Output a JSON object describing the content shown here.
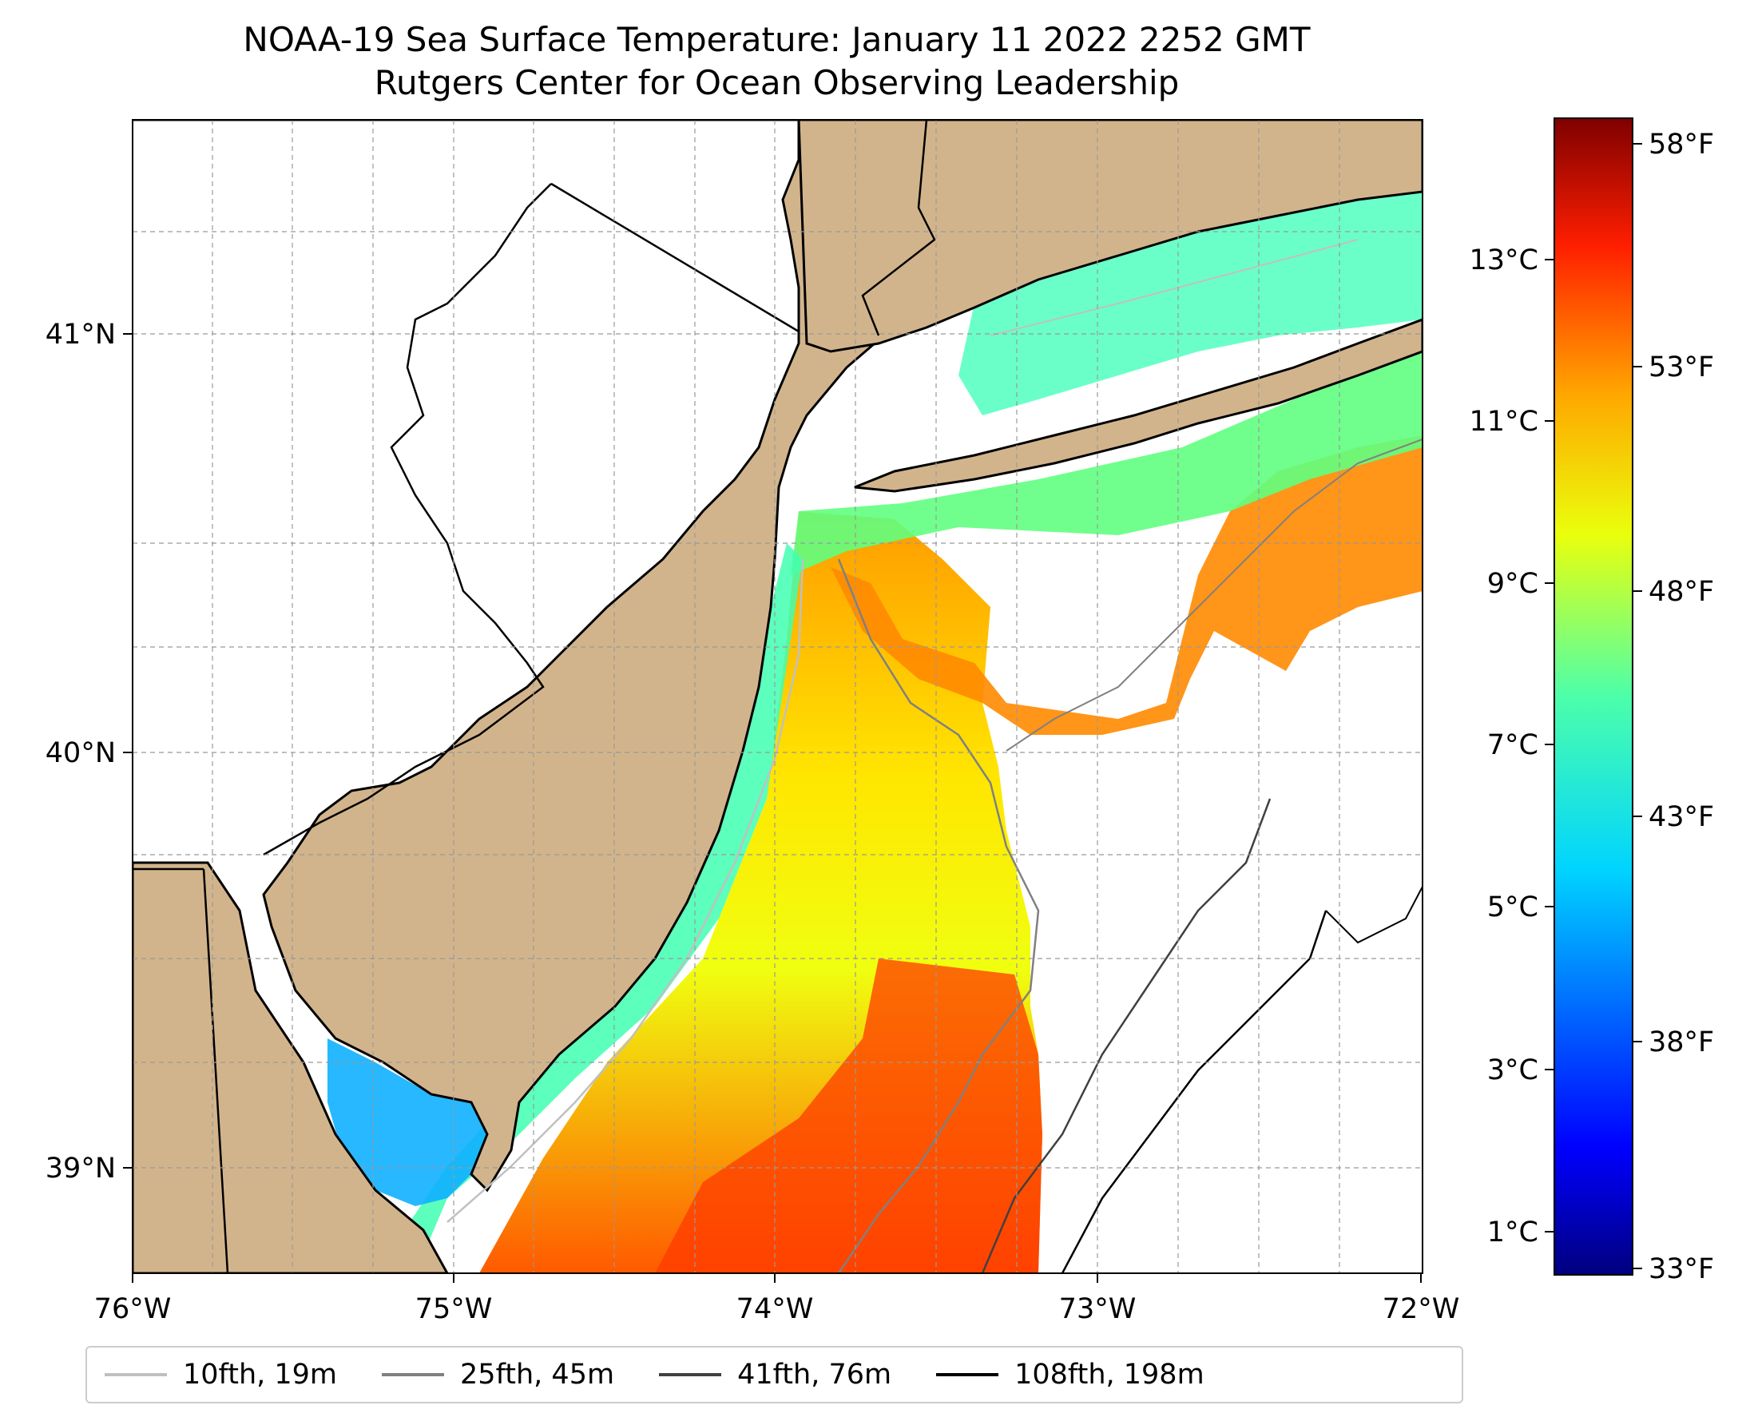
{
  "title": {
    "line1": "NOAA-19 Sea Surface Temperature: January 11 2022 2252 GMT",
    "line2": "Rutgers Center for Ocean Observing Leadership"
  },
  "map": {
    "lon_ticks": [
      "76°W",
      "75°W",
      "74°W",
      "73°W",
      "72°W"
    ],
    "lat_ticks": [
      "41°N",
      "40°N",
      "39°N"
    ],
    "lon_range": [
      -76,
      -72
    ],
    "lat_range": [
      38.7,
      41.5
    ],
    "land_color": "#d2b48c",
    "ocean_nodata_color": "#ffffff"
  },
  "colorbar": {
    "celsius_ticks": [
      "13°C",
      "11°C",
      "9°C",
      "7°C",
      "5°C",
      "3°C",
      "1°C"
    ],
    "fahrenheit_ticks": [
      "58°F",
      "53°F",
      "48°F",
      "43°F",
      "38°F",
      "33°F"
    ],
    "colormap": "jet",
    "range_f": [
      33,
      59
    ]
  },
  "legend": {
    "items": [
      {
        "label": "10fth, 19m",
        "color": "#c0c0c0"
      },
      {
        "label": "25fth, 45m",
        "color": "#808080"
      },
      {
        "label": "41fth, 76m",
        "color": "#404040"
      },
      {
        "label": "108fth, 198m",
        "color": "#000000"
      }
    ]
  }
}
